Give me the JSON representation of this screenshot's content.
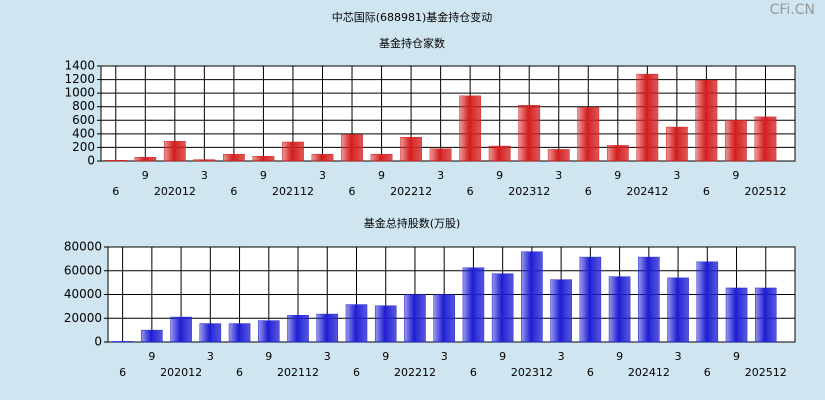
{
  "title": "中芯国际(688981)基金持仓变动",
  "watermark": "CFi.CN",
  "chart_data": [
    {
      "type": "bar",
      "title": "基金持仓家数",
      "color": "#d42020",
      "grid": true,
      "categories": [
        "6",
        "9",
        "202012",
        "3",
        "6",
        "9",
        "202112",
        "3",
        "6",
        "9",
        "202212",
        "3",
        "6",
        "9",
        "202312",
        "3",
        "6",
        "9",
        "202412",
        "3",
        "6",
        "9",
        "202512"
      ],
      "values": [
        10,
        55,
        290,
        20,
        100,
        70,
        280,
        100,
        390,
        100,
        350,
        180,
        960,
        220,
        820,
        170,
        790,
        230,
        1280,
        500,
        1190,
        600,
        650
      ],
      "ylim": [
        0,
        1400
      ],
      "yticks": [
        0,
        200,
        400,
        600,
        800,
        1000,
        1200,
        1400
      ]
    },
    {
      "type": "bar",
      "title": "基金总持股数(万股)",
      "color": "#2020d4",
      "grid": true,
      "categories": [
        "6",
        "9",
        "202012",
        "3",
        "6",
        "9",
        "202112",
        "3",
        "6",
        "9",
        "202212",
        "3",
        "6",
        "9",
        "202312",
        "3",
        "6",
        "9",
        "202412",
        "3",
        "6",
        "9",
        "202512"
      ],
      "values": [
        500,
        10000,
        21000,
        15500,
        15500,
        18000,
        22500,
        23500,
        31500,
        30500,
        40000,
        40000,
        62500,
        57500,
        76000,
        52500,
        71500,
        55000,
        71500,
        54000,
        67500,
        45500,
        45500
      ],
      "ylim": [
        0,
        80000
      ],
      "yticks": [
        0,
        20000,
        40000,
        60000,
        80000
      ]
    }
  ]
}
